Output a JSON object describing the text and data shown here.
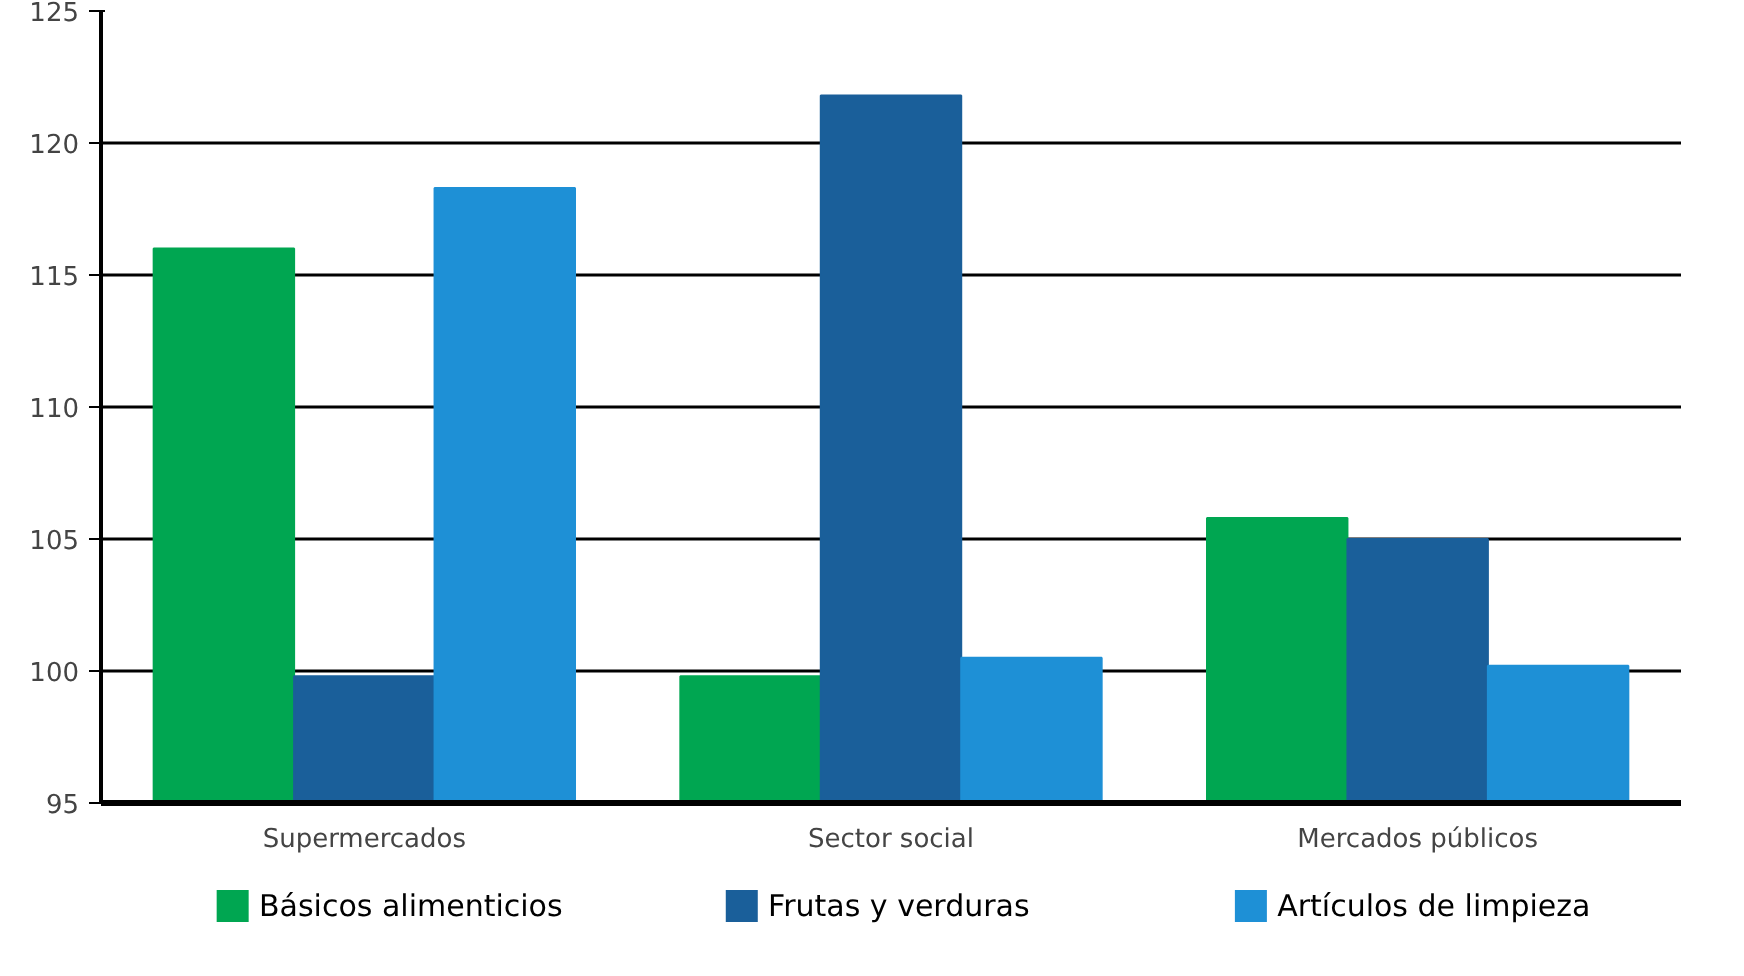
{
  "chart_data": {
    "type": "bar",
    "categories": [
      "Supermercados",
      "Sector social",
      "Mercados públicos"
    ],
    "series": [
      {
        "name": "Básicos alimenticios",
        "color": "#00a651",
        "values": [
          116,
          99.8,
          105.8
        ]
      },
      {
        "name": "Frutas y verduras",
        "color": "#1a5f9a",
        "values": [
          99.8,
          121.8,
          105
        ]
      },
      {
        "name": "Artículos de limpieza",
        "color": "#1e90d6",
        "values": [
          118.3,
          100.5,
          100.2
        ]
      }
    ],
    "ylim": [
      95,
      125
    ],
    "yticks": [
      95,
      100,
      105,
      110,
      115,
      120,
      125
    ],
    "grid": "y",
    "legend": "bottom"
  }
}
